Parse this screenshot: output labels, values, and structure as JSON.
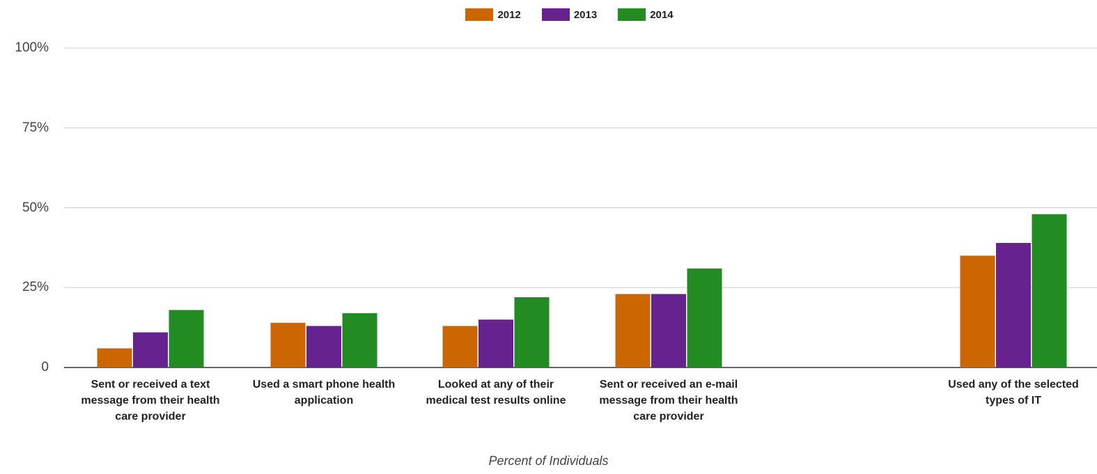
{
  "chart_data": {
    "type": "bar",
    "xlabel": "Percent of Individuals",
    "ylabel": "",
    "ylim": [
      0,
      100
    ],
    "yticks": [
      "0",
      "25%",
      "50%",
      "75%",
      "100%"
    ],
    "ytick_values": [
      0,
      25,
      50,
      75,
      100
    ],
    "legend_position": "top",
    "grid": true,
    "categories": [
      "Sent or received a text message from their health care provider",
      "Used a smart phone health application",
      "Looked at any of their medical test results online",
      "Sent or received an e-mail message from their health care provider",
      "Used any of the selected types of IT"
    ],
    "series": [
      {
        "name": "2012",
        "color": "#cc6600",
        "values": [
          6,
          14,
          13,
          23,
          35
        ]
      },
      {
        "name": "2013",
        "color": "#66228e",
        "values": [
          11,
          13,
          15,
          23,
          39
        ]
      },
      {
        "name": "2014",
        "color": "#228b22",
        "values": [
          18,
          17,
          22,
          31,
          48
        ]
      }
    ]
  }
}
